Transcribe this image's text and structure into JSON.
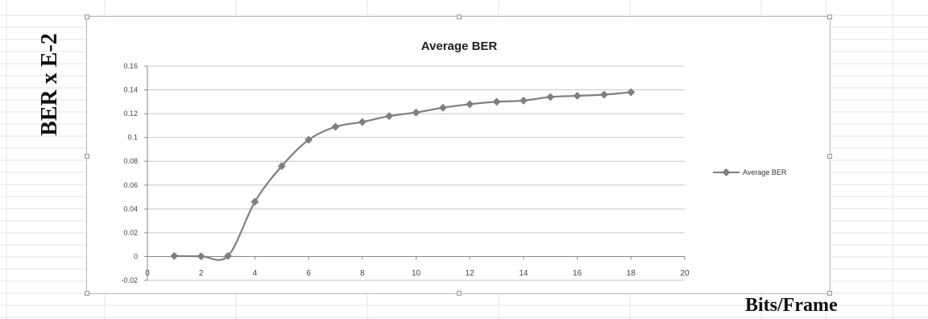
{
  "outer_labels": {
    "y": "BER x E-2",
    "x": "Bits/Frame"
  },
  "chart_data": {
    "type": "line",
    "title": "Average BER",
    "xlabel": "",
    "ylabel": "",
    "xlim": [
      0,
      20
    ],
    "ylim": [
      -0.02,
      0.16
    ],
    "x_ticks": [
      "0",
      "2",
      "4",
      "6",
      "8",
      "10",
      "12",
      "14",
      "16",
      "18",
      "20"
    ],
    "y_ticks": [
      "-0.02",
      "0",
      "0.02",
      "0.04",
      "0.06",
      "0.08",
      "0.1",
      "0.12",
      "0.14",
      "0.16"
    ],
    "grid": "horizontal",
    "legend_position": "right",
    "series": [
      {
        "name": "Average BER",
        "color": "#7f7f7f",
        "marker": "diamond",
        "x": [
          1,
          2,
          3,
          4,
          5,
          6,
          7,
          8,
          9,
          10,
          11,
          12,
          13,
          14,
          15,
          16,
          17,
          18
        ],
        "y": [
          0.0005,
          0.0002,
          0.0005,
          0.046,
          0.076,
          0.098,
          0.109,
          0.113,
          0.118,
          0.121,
          0.125,
          0.128,
          0.13,
          0.131,
          0.134,
          0.135,
          0.136,
          0.138
        ]
      }
    ]
  }
}
